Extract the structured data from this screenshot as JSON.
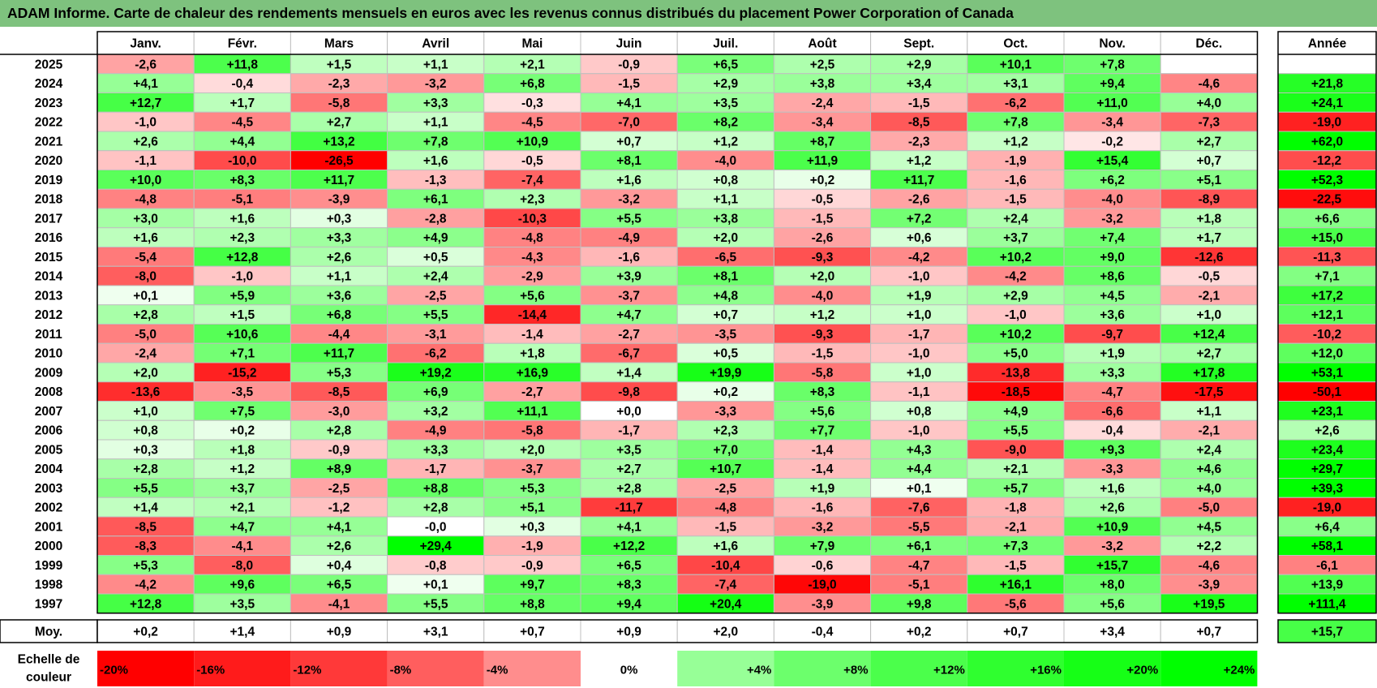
{
  "title": "ADAM Informe. Carte de chaleur des rendements mensuels en euros avec les revenus connus distribués du placement Power Corporation of Canada",
  "chart_data": {
    "type": "heatmap",
    "months": [
      "Janv.",
      "Févr.",
      "Mars",
      "Avril",
      "Mai",
      "Juin",
      "Juil.",
      "Août",
      "Sept.",
      "Oct.",
      "Nov.",
      "Déc."
    ],
    "year_header": "Année",
    "avg_label": "Moy.",
    "scale_label_line1": "Echelle de",
    "scale_label_line2": "couleur",
    "rows": [
      {
        "year": "2025",
        "values": [
          -2.6,
          11.8,
          1.5,
          1.1,
          2.1,
          -0.9,
          6.5,
          2.5,
          2.9,
          10.1,
          7.8,
          null
        ],
        "annual": null
      },
      {
        "year": "2024",
        "values": [
          4.1,
          -0.4,
          -2.3,
          -3.2,
          6.8,
          -1.5,
          2.9,
          3.8,
          3.4,
          3.1,
          9.4,
          -4.6
        ],
        "annual": 21.8
      },
      {
        "year": "2023",
        "values": [
          12.7,
          1.7,
          -5.8,
          3.3,
          -0.3,
          4.1,
          3.5,
          -2.4,
          -1.5,
          -6.2,
          11.0,
          4.0
        ],
        "annual": 24.1
      },
      {
        "year": "2022",
        "values": [
          -1.0,
          -4.5,
          2.7,
          1.1,
          -4.5,
          -7.0,
          8.2,
          -3.4,
          -8.5,
          7.8,
          -3.4,
          -7.3
        ],
        "annual": -19.0
      },
      {
        "year": "2021",
        "values": [
          2.6,
          4.4,
          13.2,
          7.8,
          10.9,
          0.7,
          1.2,
          8.7,
          -2.3,
          1.2,
          -0.2,
          2.7
        ],
        "annual": 62.0
      },
      {
        "year": "2020",
        "values": [
          -1.1,
          -10.0,
          -26.5,
          1.6,
          -0.5,
          8.1,
          -4.0,
          11.9,
          1.2,
          -1.9,
          15.4,
          0.7
        ],
        "annual": -12.2
      },
      {
        "year": "2019",
        "values": [
          10.0,
          8.3,
          11.7,
          -1.3,
          -7.4,
          1.6,
          0.8,
          0.2,
          11.7,
          -1.6,
          6.2,
          5.1
        ],
        "annual": 52.3
      },
      {
        "year": "2018",
        "values": [
          -4.8,
          -5.1,
          -3.9,
          6.1,
          2.3,
          -3.2,
          1.1,
          -0.5,
          -2.6,
          -1.5,
          -4.0,
          -8.9
        ],
        "annual": -22.5
      },
      {
        "year": "2017",
        "values": [
          3.0,
          1.6,
          0.3,
          -2.8,
          -10.3,
          5.5,
          3.8,
          -1.5,
          7.2,
          2.4,
          -3.2,
          1.8
        ],
        "annual": 6.6
      },
      {
        "year": "2016",
        "values": [
          1.6,
          2.3,
          3.3,
          4.9,
          -4.8,
          -4.9,
          2.0,
          -2.6,
          0.6,
          3.7,
          7.4,
          1.7
        ],
        "annual": 15.0
      },
      {
        "year": "2015",
        "values": [
          -5.4,
          12.8,
          2.6,
          0.5,
          -4.3,
          -1.6,
          -6.5,
          -9.3,
          -4.2,
          10.2,
          9.0,
          -12.6
        ],
        "annual": -11.3
      },
      {
        "year": "2014",
        "values": [
          -8.0,
          -1.0,
          1.1,
          2.4,
          -2.9,
          3.9,
          8.1,
          2.0,
          -1.0,
          -4.2,
          8.6,
          -0.5
        ],
        "annual": 7.1
      },
      {
        "year": "2013",
        "values": [
          0.1,
          5.9,
          3.6,
          -2.5,
          5.6,
          -3.7,
          4.8,
          -4.0,
          1.9,
          2.9,
          4.5,
          -2.1
        ],
        "annual": 17.2
      },
      {
        "year": "2012",
        "values": [
          2.8,
          1.5,
          6.8,
          5.5,
          -14.4,
          4.7,
          0.7,
          1.2,
          1.0,
          -1.0,
          3.6,
          1.0
        ],
        "annual": 12.1
      },
      {
        "year": "2011",
        "values": [
          -5.0,
          10.6,
          -4.4,
          -3.1,
          -1.4,
          -2.7,
          -3.5,
          -9.3,
          -1.7,
          10.2,
          -9.7,
          12.4
        ],
        "annual": -10.2
      },
      {
        "year": "2010",
        "values": [
          -2.4,
          7.1,
          11.7,
          -6.2,
          1.8,
          -6.7,
          0.5,
          -1.5,
          -1.0,
          5.0,
          1.9,
          2.7
        ],
        "annual": 12.0
      },
      {
        "year": "2009",
        "values": [
          2.0,
          -15.2,
          5.3,
          19.2,
          16.9,
          1.4,
          19.9,
          -5.8,
          1.0,
          -13.8,
          3.3,
          17.8
        ],
        "annual": 53.1
      },
      {
        "year": "2008",
        "values": [
          -13.6,
          -3.5,
          -8.5,
          6.9,
          -2.7,
          -9.8,
          0.2,
          8.3,
          -1.1,
          -18.5,
          -4.7,
          -17.5
        ],
        "annual": -50.1
      },
      {
        "year": "2007",
        "values": [
          1.0,
          7.5,
          -3.0,
          3.2,
          11.1,
          0.0,
          -3.3,
          5.6,
          0.8,
          4.9,
          -6.6,
          1.1
        ],
        "annual": 23.1
      },
      {
        "year": "2006",
        "values": [
          0.8,
          0.2,
          2.8,
          -4.9,
          -5.8,
          -1.7,
          2.3,
          7.7,
          -1.0,
          5.5,
          -0.4,
          -2.1
        ],
        "annual": 2.6
      },
      {
        "year": "2005",
        "values": [
          0.3,
          1.8,
          -0.9,
          3.3,
          2.0,
          3.5,
          7.0,
          -1.4,
          4.3,
          -9.0,
          9.3,
          2.4
        ],
        "annual": 23.4
      },
      {
        "year": "2004",
        "values": [
          2.8,
          1.2,
          8.9,
          -1.7,
          -3.7,
          2.7,
          10.7,
          -1.4,
          4.4,
          2.1,
          -3.3,
          4.6
        ],
        "annual": 29.7
      },
      {
        "year": "2003",
        "values": [
          5.5,
          3.7,
          -2.5,
          8.8,
          5.3,
          2.8,
          -2.5,
          1.9,
          0.1,
          5.7,
          1.6,
          4.0
        ],
        "annual": 39.3
      },
      {
        "year": "2002",
        "values": [
          1.4,
          2.1,
          -1.2,
          2.8,
          5.1,
          -11.7,
          -4.8,
          -1.6,
          -7.6,
          -1.8,
          2.6,
          -5.0
        ],
        "annual": -19.0
      },
      {
        "year": "2001",
        "values": [
          -8.5,
          4.7,
          4.1,
          "-0.0",
          0.3,
          4.1,
          -1.5,
          -3.2,
          -5.5,
          -2.1,
          10.9,
          4.5
        ],
        "annual": 6.4
      },
      {
        "year": "2000",
        "values": [
          -8.3,
          -4.1,
          2.6,
          29.4,
          -1.9,
          12.2,
          1.6,
          7.9,
          6.1,
          7.3,
          -3.2,
          2.2
        ],
        "annual": 58.1
      },
      {
        "year": "1999",
        "values": [
          5.3,
          -8.0,
          0.4,
          -0.8,
          -0.9,
          6.5,
          -10.4,
          -0.6,
          -4.7,
          -1.5,
          15.7,
          -4.6
        ],
        "annual": -6.1
      },
      {
        "year": "1998",
        "values": [
          -4.2,
          9.6,
          6.5,
          0.1,
          9.7,
          8.3,
          -7.4,
          -19.0,
          -5.1,
          16.1,
          8.0,
          -3.9
        ],
        "annual": 13.9
      },
      {
        "year": "1997",
        "values": [
          12.8,
          3.5,
          -4.1,
          5.5,
          8.8,
          9.4,
          20.4,
          -3.9,
          9.8,
          -5.6,
          5.6,
          19.5
        ],
        "annual": 111.4
      }
    ],
    "averages": [
      0.2,
      1.4,
      0.9,
      3.1,
      0.7,
      0.9,
      2.0,
      -0.4,
      0.2,
      0.7,
      3.4,
      0.7
    ],
    "average_annual": 15.7,
    "scale": [
      "-20%",
      "-16%",
      "-12%",
      "-8%",
      "-4%",
      "0%",
      "+4%",
      "+8%",
      "+12%",
      "+16%",
      "+20%",
      "+24%"
    ],
    "scale_values": [
      -20,
      -16,
      -12,
      -8,
      -4,
      0,
      4,
      8,
      12,
      16,
      20,
      24
    ],
    "colors": {
      "negative_max": "#ff0000",
      "neutral": "#ffffff",
      "positive_max": "#00ff00",
      "title_bg": "#7ec27e",
      "grid": "#bfbfbf",
      "border": "#000000"
    }
  }
}
